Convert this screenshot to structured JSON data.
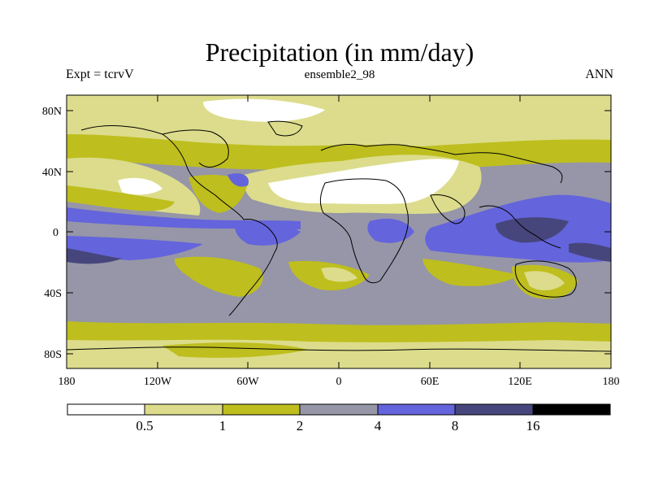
{
  "header": {
    "title": "Precipitation (in mm/day)",
    "left": "Expt = tcrvV",
    "center": "ensemble2_98",
    "right": "ANN"
  },
  "axes": {
    "lat_labels": [
      "80N",
      "40N",
      "0",
      "40S",
      "80S"
    ],
    "lon_labels": [
      "180",
      "120W",
      "60W",
      "0",
      "60E",
      "120E",
      "180"
    ]
  },
  "colorbar": {
    "levels": [
      "0.5",
      "1",
      "2",
      "4",
      "8",
      "16"
    ],
    "colors": [
      "#ffffff",
      "#dcdc8c",
      "#bebe1e",
      "#9696a8",
      "#6464dc",
      "#46467d",
      "#000000"
    ]
  },
  "map_colors": {
    "dry": "#ffffff",
    "light": "#dcdc8c",
    "olive": "#bebe1e",
    "gray": "#9696a8",
    "blue": "#6464dc",
    "dark": "#46467d",
    "coast": "#000000"
  }
}
